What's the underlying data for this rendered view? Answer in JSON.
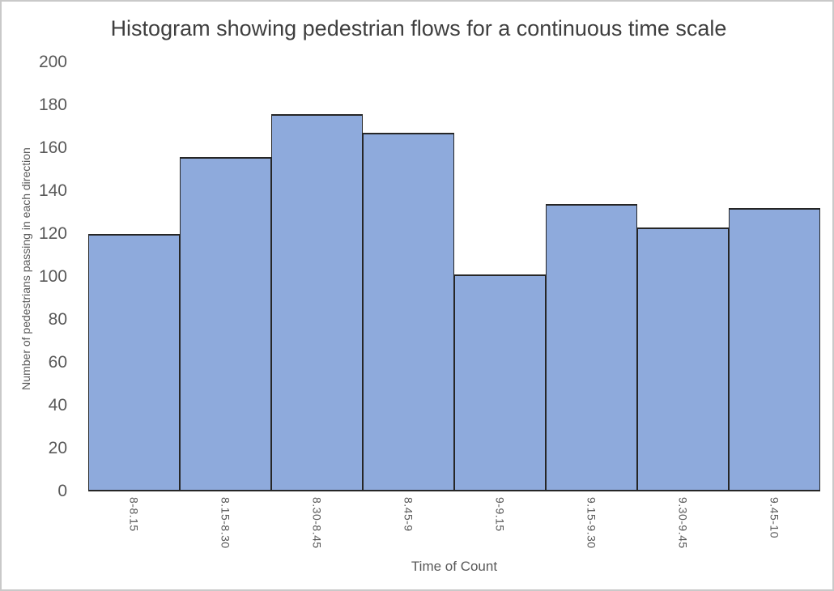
{
  "chart_data": {
    "type": "bar",
    "subtype": "histogram",
    "title": "Histogram showing pedestrian flows for a continuous time scale",
    "categories": [
      "8-8.15",
      "8.15-8.30",
      "8.30-8.45",
      "8.45-9",
      "9-9.15",
      "9.15-9.30",
      "9.30-9.45",
      "9.45-10"
    ],
    "values": [
      120,
      156,
      176,
      167,
      101,
      134,
      123,
      132
    ],
    "xlabel": "Time of Count",
    "ylabel": "Number of pedestrians passing in each direction",
    "ylim": [
      0,
      200
    ],
    "yticks": [
      0,
      20,
      40,
      60,
      80,
      100,
      120,
      140,
      160,
      180,
      200
    ],
    "grid": false,
    "legend_position": "none",
    "bar_gap": 0,
    "colors": {
      "bar_fill": "#8EAADC",
      "bar_border": "#262626",
      "title_text": "#3f3f3f",
      "axis_text": "#595959",
      "frame_border": "#c9c9c9",
      "background": "#ffffff"
    }
  }
}
